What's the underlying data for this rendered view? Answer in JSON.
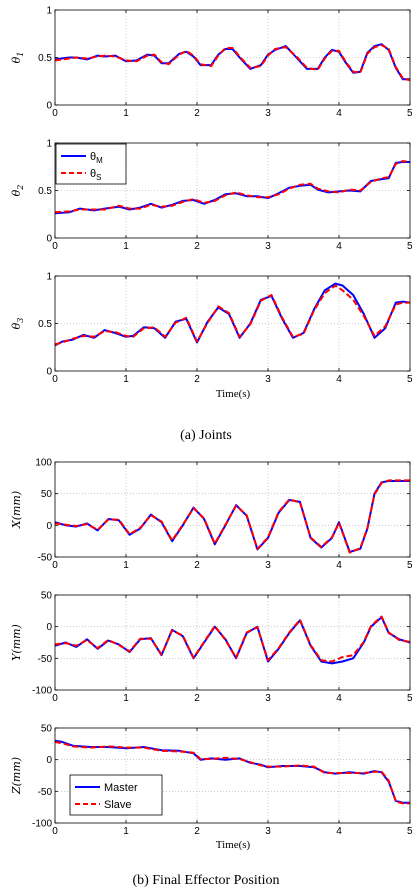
{
  "captions": {
    "a": "(a) Joints",
    "b": "(b) Final Effector Position"
  },
  "x_axis_label": "Time(s)",
  "colors": {
    "master": "#0000ff",
    "slave": "#ff0000"
  },
  "chart_data": [
    {
      "type": "line",
      "panel": "(a)",
      "ylabel": "θ1",
      "ylabel_base": "θ",
      "ylabel_sub": "1",
      "xlim": [
        0,
        5
      ],
      "ylim": [
        0,
        1
      ],
      "xticks": [
        "0",
        "1",
        "2",
        "3",
        "4",
        "5"
      ],
      "yticks": [
        "0",
        "0.5",
        "1"
      ],
      "grid": true,
      "x": [
        0,
        0.2,
        0.3,
        0.45,
        0.6,
        0.7,
        0.85,
        1.0,
        1.15,
        1.3,
        1.4,
        1.5,
        1.6,
        1.75,
        1.85,
        1.95,
        2.05,
        2.2,
        2.3,
        2.4,
        2.5,
        2.6,
        2.75,
        2.9,
        3.0,
        3.1,
        3.25,
        3.4,
        3.55,
        3.7,
        3.8,
        3.9,
        4.0,
        4.1,
        4.2,
        4.3,
        4.4,
        4.5,
        4.6,
        4.7,
        4.8,
        4.9,
        5.0
      ],
      "series": [
        {
          "name": "θM",
          "values": [
            0.48,
            0.5,
            0.5,
            0.48,
            0.52,
            0.51,
            0.52,
            0.46,
            0.47,
            0.53,
            0.52,
            0.44,
            0.44,
            0.54,
            0.56,
            0.51,
            0.42,
            0.42,
            0.53,
            0.59,
            0.59,
            0.5,
            0.38,
            0.42,
            0.53,
            0.58,
            0.62,
            0.5,
            0.38,
            0.38,
            0.5,
            0.58,
            0.56,
            0.44,
            0.34,
            0.35,
            0.55,
            0.62,
            0.64,
            0.58,
            0.39,
            0.27,
            0.27
          ]
        },
        {
          "name": "θS",
          "values": [
            0.47,
            0.49,
            0.5,
            0.49,
            0.51,
            0.52,
            0.51,
            0.47,
            0.46,
            0.52,
            0.53,
            0.45,
            0.43,
            0.53,
            0.57,
            0.52,
            0.43,
            0.41,
            0.52,
            0.6,
            0.6,
            0.51,
            0.39,
            0.41,
            0.52,
            0.59,
            0.61,
            0.51,
            0.39,
            0.37,
            0.49,
            0.57,
            0.57,
            0.45,
            0.35,
            0.34,
            0.54,
            0.61,
            0.63,
            0.59,
            0.4,
            0.28,
            0.26
          ]
        }
      ]
    },
    {
      "type": "line",
      "panel": "(a)",
      "ylabel": "θ2",
      "ylabel_base": "θ",
      "ylabel_sub": "2",
      "xlim": [
        0,
        5
      ],
      "ylim": [
        0,
        1
      ],
      "xticks": [
        "0",
        "1",
        "2",
        "3",
        "4",
        "5"
      ],
      "yticks": [
        "0",
        "0.5",
        "1"
      ],
      "grid": true,
      "legend": [
        {
          "base": "θ",
          "sub": "M"
        },
        {
          "base": "θ",
          "sub": "S"
        }
      ],
      "legend_position": "top-left",
      "x": [
        0,
        0.2,
        0.35,
        0.55,
        0.7,
        0.9,
        1.05,
        1.2,
        1.35,
        1.5,
        1.65,
        1.8,
        1.95,
        2.1,
        2.25,
        2.4,
        2.55,
        2.7,
        2.85,
        3.0,
        3.15,
        3.3,
        3.45,
        3.6,
        3.7,
        3.85,
        4.0,
        4.15,
        4.3,
        4.45,
        4.6,
        4.7,
        4.8,
        4.9,
        5.0
      ],
      "series": [
        {
          "name": "θM",
          "values": [
            0.26,
            0.27,
            0.31,
            0.29,
            0.31,
            0.33,
            0.3,
            0.32,
            0.36,
            0.32,
            0.35,
            0.39,
            0.4,
            0.36,
            0.4,
            0.46,
            0.47,
            0.44,
            0.44,
            0.42,
            0.47,
            0.53,
            0.55,
            0.56,
            0.51,
            0.48,
            0.49,
            0.5,
            0.49,
            0.6,
            0.62,
            0.63,
            0.79,
            0.8,
            0.8
          ]
        },
        {
          "name": "θS",
          "values": [
            0.27,
            0.28,
            0.3,
            0.3,
            0.3,
            0.34,
            0.31,
            0.31,
            0.35,
            0.33,
            0.34,
            0.38,
            0.41,
            0.37,
            0.39,
            0.45,
            0.48,
            0.45,
            0.43,
            0.43,
            0.46,
            0.52,
            0.56,
            0.57,
            0.52,
            0.49,
            0.48,
            0.51,
            0.5,
            0.59,
            0.63,
            0.64,
            0.78,
            0.81,
            0.8
          ]
        }
      ]
    },
    {
      "type": "line",
      "panel": "(a)",
      "ylabel": "θ3",
      "ylabel_base": "θ",
      "ylabel_sub": "3",
      "xlim": [
        0,
        5
      ],
      "ylim": [
        0,
        1
      ],
      "xticks": [
        "0",
        "1",
        "2",
        "3",
        "4",
        "5"
      ],
      "yticks": [
        "0",
        "0.5",
        "1"
      ],
      "grid": true,
      "x": [
        0,
        0.1,
        0.25,
        0.4,
        0.55,
        0.7,
        0.85,
        1.0,
        1.1,
        1.25,
        1.4,
        1.55,
        1.7,
        1.85,
        2.0,
        2.15,
        2.3,
        2.45,
        2.6,
        2.75,
        2.9,
        3.05,
        3.2,
        3.35,
        3.5,
        3.65,
        3.8,
        3.95,
        4.05,
        4.2,
        4.35,
        4.5,
        4.65,
        4.8,
        4.9,
        5.0
      ],
      "series": [
        {
          "name": "θM",
          "values": [
            0.27,
            0.31,
            0.33,
            0.38,
            0.35,
            0.43,
            0.4,
            0.36,
            0.37,
            0.46,
            0.45,
            0.35,
            0.52,
            0.55,
            0.3,
            0.52,
            0.67,
            0.6,
            0.35,
            0.5,
            0.75,
            0.79,
            0.55,
            0.35,
            0.4,
            0.65,
            0.85,
            0.92,
            0.9,
            0.8,
            0.6,
            0.35,
            0.45,
            0.72,
            0.73,
            0.72
          ]
        },
        {
          "name": "θS",
          "values": [
            0.28,
            0.3,
            0.34,
            0.37,
            0.36,
            0.42,
            0.41,
            0.37,
            0.36,
            0.45,
            0.46,
            0.36,
            0.51,
            0.56,
            0.31,
            0.51,
            0.68,
            0.61,
            0.36,
            0.49,
            0.74,
            0.8,
            0.56,
            0.36,
            0.39,
            0.64,
            0.82,
            0.9,
            0.85,
            0.75,
            0.58,
            0.37,
            0.47,
            0.7,
            0.72,
            0.72
          ]
        }
      ]
    },
    {
      "type": "line",
      "panel": "(b)",
      "ylabel": "X(mm)",
      "xlim": [
        0,
        5
      ],
      "ylim": [
        -50,
        100
      ],
      "xticks": [
        "0",
        "1",
        "2",
        "3",
        "4",
        "5"
      ],
      "yticks": [
        "-50",
        "0",
        "50",
        "100"
      ],
      "grid": true,
      "x": [
        0,
        0.15,
        0.3,
        0.45,
        0.6,
        0.75,
        0.9,
        1.05,
        1.2,
        1.35,
        1.5,
        1.65,
        1.8,
        1.95,
        2.1,
        2.25,
        2.4,
        2.55,
        2.7,
        2.85,
        3.0,
        3.15,
        3.3,
        3.45,
        3.6,
        3.75,
        3.9,
        4.0,
        4.15,
        4.3,
        4.4,
        4.5,
        4.6,
        4.7,
        4.8,
        4.9,
        5.0
      ],
      "series": [
        {
          "name": "Master",
          "values": [
            5,
            0,
            -2,
            3,
            -8,
            10,
            8,
            -15,
            -5,
            17,
            5,
            -25,
            0,
            28,
            10,
            -30,
            0,
            32,
            15,
            -38,
            -20,
            20,
            40,
            37,
            -20,
            -35,
            -20,
            5,
            -42,
            -37,
            -5,
            50,
            68,
            70,
            70,
            70,
            70
          ]
        },
        {
          "name": "Slave",
          "values": [
            3,
            1,
            -1,
            2,
            -7,
            9,
            9,
            -14,
            -4,
            16,
            6,
            -24,
            1,
            27,
            11,
            -29,
            1,
            31,
            16,
            -37,
            -19,
            21,
            41,
            36,
            -19,
            -34,
            -19,
            4,
            -43,
            -36,
            -4,
            49,
            67,
            71,
            71,
            71,
            71
          ]
        }
      ]
    },
    {
      "type": "line",
      "panel": "(b)",
      "ylabel": "Y(mm)",
      "xlim": [
        0,
        5
      ],
      "ylim": [
        -100,
        50
      ],
      "xticks": [
        "0",
        "1",
        "2",
        "3",
        "4",
        "5"
      ],
      "yticks": [
        "-100",
        "-50",
        "0",
        "50"
      ],
      "grid": true,
      "x": [
        0,
        0.15,
        0.3,
        0.45,
        0.6,
        0.75,
        0.9,
        1.05,
        1.2,
        1.35,
        1.5,
        1.65,
        1.8,
        1.95,
        2.1,
        2.25,
        2.4,
        2.55,
        2.7,
        2.85,
        3.0,
        3.15,
        3.3,
        3.45,
        3.6,
        3.75,
        3.9,
        4.05,
        4.2,
        4.35,
        4.45,
        4.6,
        4.7,
        4.85,
        5.0
      ],
      "series": [
        {
          "name": "Master",
          "values": [
            -30,
            -25,
            -32,
            -20,
            -35,
            -22,
            -28,
            -40,
            -20,
            -18,
            -45,
            -5,
            -15,
            -50,
            -25,
            0,
            -20,
            -50,
            -10,
            0,
            -55,
            -35,
            -10,
            10,
            -30,
            -55,
            -58,
            -55,
            -50,
            -25,
            0,
            15,
            -10,
            -20,
            -25
          ]
        },
        {
          "name": "Slave",
          "values": [
            -28,
            -26,
            -30,
            -21,
            -34,
            -21,
            -29,
            -39,
            -19,
            -19,
            -44,
            -6,
            -14,
            -49,
            -24,
            1,
            -21,
            -49,
            -9,
            -1,
            -53,
            -34,
            -9,
            11,
            -29,
            -53,
            -55,
            -48,
            -45,
            -24,
            1,
            16,
            -9,
            -21,
            -24
          ]
        }
      ]
    },
    {
      "type": "line",
      "panel": "(b)",
      "ylabel": "Z(mm)",
      "xlim": [
        0,
        5
      ],
      "ylim": [
        -100,
        50
      ],
      "xticks": [
        "0",
        "1",
        "2",
        "3",
        "4",
        "5"
      ],
      "yticks": [
        "-100",
        "-50",
        "0",
        "50"
      ],
      "grid": true,
      "legend": [
        {
          "base": "Master"
        },
        {
          "base": "Slave"
        }
      ],
      "legend_position": "bottom-left",
      "x": [
        0,
        0.1,
        0.25,
        0.5,
        0.75,
        1.0,
        1.25,
        1.5,
        1.75,
        1.95,
        2.05,
        2.2,
        2.4,
        2.6,
        2.75,
        2.9,
        3.0,
        3.2,
        3.45,
        3.65,
        3.8,
        3.95,
        4.15,
        4.35,
        4.5,
        4.6,
        4.7,
        4.8,
        4.9,
        5.0
      ],
      "series": [
        {
          "name": "Master",
          "values": [
            30,
            28,
            22,
            20,
            20,
            18,
            20,
            15,
            14,
            10,
            0,
            2,
            0,
            2,
            -5,
            -8,
            -12,
            -10,
            -10,
            -12,
            -20,
            -22,
            -20,
            -22,
            -18,
            -20,
            -35,
            -65,
            -68,
            -68
          ]
        },
        {
          "name": "Slave",
          "values": [
            28,
            26,
            21,
            19,
            21,
            19,
            19,
            14,
            13,
            11,
            1,
            1,
            3,
            1,
            -4,
            -9,
            -11,
            -11,
            -9,
            -11,
            -21,
            -21,
            -21,
            -21,
            -19,
            -19,
            -33,
            -66,
            -69,
            -69
          ]
        }
      ]
    }
  ]
}
